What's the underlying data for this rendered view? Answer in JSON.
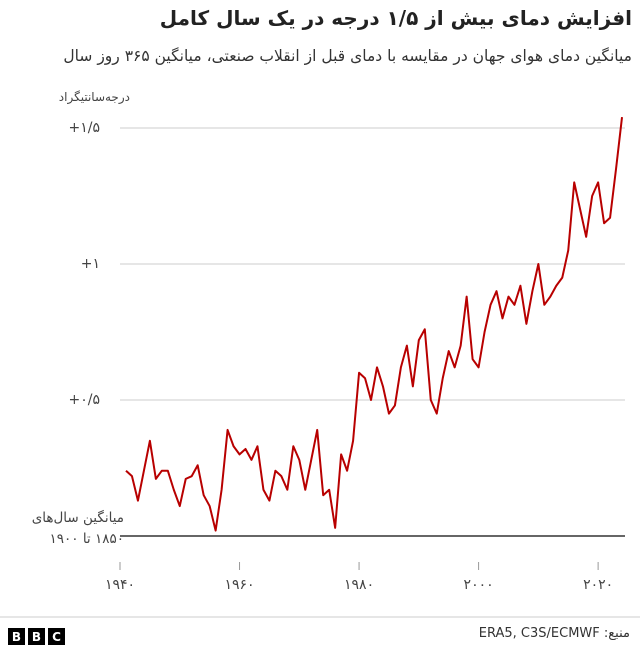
{
  "chart_data": {
    "type": "line",
    "title": "افزایش دمای بیش از ۱/۵ درجه در یک سال کامل",
    "subtitle": "میانگین دمای هوای جهان در مقایسه با دمای قبل از انقلاب صنعتی، میانگین ۳۶۵ روز سال",
    "y_label": "درجه‌سانتیگراد",
    "color": "#b80000",
    "x": [
      1941,
      1942,
      1943,
      1944,
      1945,
      1946,
      1947,
      1948,
      1949,
      1950,
      1951,
      1952,
      1953,
      1954,
      1955,
      1956,
      1957,
      1958,
      1959,
      1960,
      1961,
      1962,
      1963,
      1964,
      1965,
      1966,
      1967,
      1968,
      1969,
      1970,
      1971,
      1972,
      1973,
      1974,
      1975,
      1976,
      1977,
      1978,
      1979,
      1980,
      1981,
      1982,
      1983,
      1984,
      1985,
      1986,
      1987,
      1988,
      1989,
      1990,
      1991,
      1992,
      1993,
      1994,
      1995,
      1996,
      1997,
      1998,
      1999,
      2000,
      2001,
      2002,
      2003,
      2004,
      2005,
      2006,
      2007,
      2008,
      2009,
      2010,
      2011,
      2012,
      2013,
      2014,
      2015,
      2016,
      2017,
      2018,
      2019,
      2020,
      2021,
      2022,
      2023,
      2024
    ],
    "values": [
      0.24,
      0.22,
      0.13,
      0.24,
      0.35,
      0.21,
      0.24,
      0.24,
      0.17,
      0.11,
      0.21,
      0.22,
      0.26,
      0.15,
      0.11,
      0.02,
      0.17,
      0.39,
      0.33,
      0.3,
      0.32,
      0.28,
      0.33,
      0.17,
      0.13,
      0.24,
      0.22,
      0.17,
      0.33,
      0.28,
      0.17,
      0.28,
      0.39,
      0.15,
      0.17,
      0.03,
      0.3,
      0.24,
      0.35,
      0.6,
      0.58,
      0.5,
      0.62,
      0.55,
      0.45,
      0.48,
      0.62,
      0.7,
      0.55,
      0.72,
      0.76,
      0.5,
      0.45,
      0.58,
      0.68,
      0.62,
      0.7,
      0.88,
      0.65,
      0.62,
      0.75,
      0.85,
      0.9,
      0.8,
      0.88,
      0.85,
      0.92,
      0.78,
      0.9,
      1.0,
      0.85,
      0.88,
      0.92,
      0.95,
      1.05,
      1.3,
      1.2,
      1.1,
      1.25,
      1.3,
      1.15,
      1.17,
      1.35,
      1.54
    ],
    "xlim": [
      1940,
      2025
    ],
    "ylim": [
      0,
      1.6
    ],
    "xticks": [
      {
        "value": 1940,
        "label": "۱۹۴۰"
      },
      {
        "value": 1960,
        "label": "۱۹۶۰"
      },
      {
        "value": 1980,
        "label": "۱۹۸۰"
      },
      {
        "value": 2000,
        "label": "۲۰۰۰"
      },
      {
        "value": 2020,
        "label": "۲۰۲۰"
      }
    ],
    "yticks": [
      {
        "value": 0,
        "label": "میانگین سال‌های ۱۸۵۰ تا ۱۹۰۰"
      },
      {
        "value": 0.5,
        "label": "+۰/۵"
      },
      {
        "value": 1,
        "label": "+۱"
      },
      {
        "value": 1.5,
        "label": "+۱/۵"
      }
    ],
    "grid": true
  },
  "footer": {
    "source": "منبع: ERA5, C3S/ECMWF",
    "logo": [
      "B",
      "B",
      "C"
    ]
  }
}
